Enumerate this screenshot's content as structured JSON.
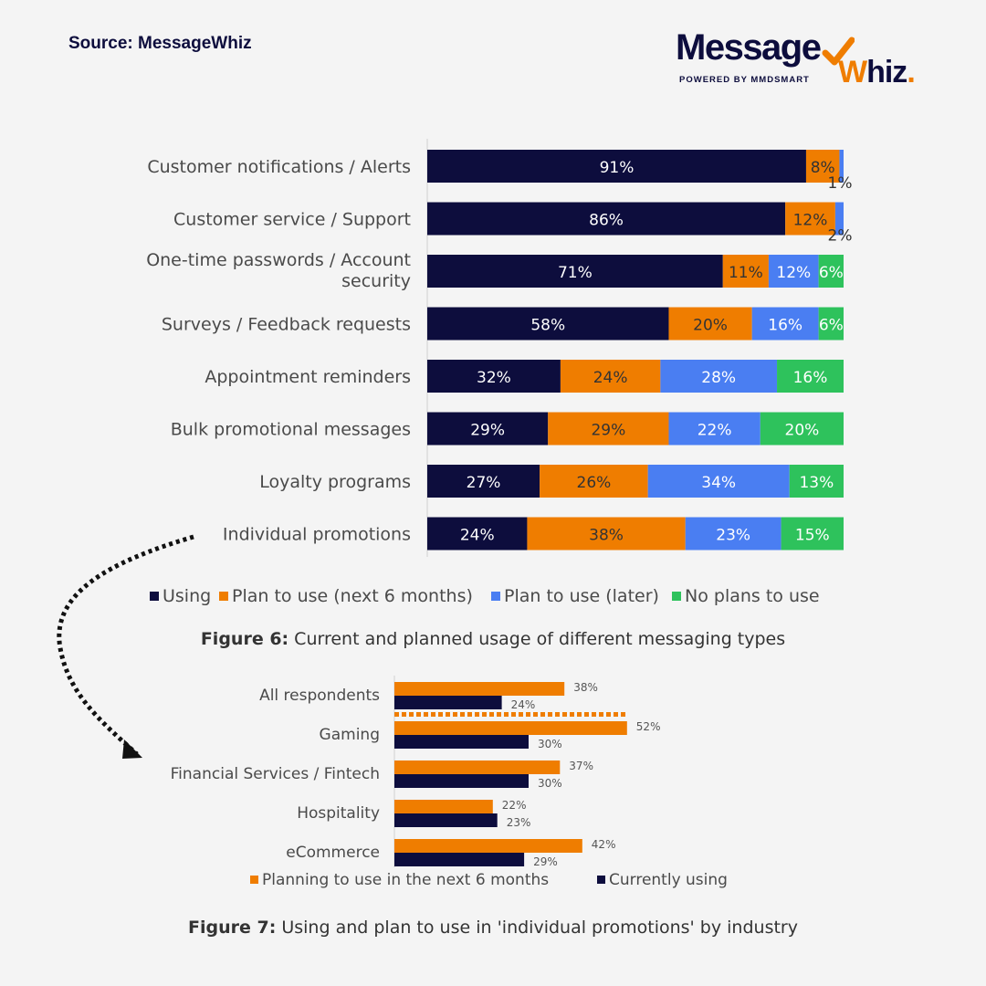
{
  "source_label": "Source: MessageWhiz",
  "logo": {
    "name_part1": "Message",
    "name_part2_w": "W",
    "name_part2_rest": "hiz",
    "name_dot": ".",
    "tagline": "POWERED BY MMDSMART"
  },
  "figure6": {
    "caption_bold": "Figure 6:",
    "caption_text": " Current and planned usage of different messaging types"
  },
  "figure7": {
    "caption_bold": "Figure 7:",
    "caption_text": " Using and plan to use in 'individual promotions' by industry"
  },
  "colors": {
    "using": "#0d0d3d",
    "plan6": "#ef7d00",
    "later": "#4a7ef2",
    "noplans": "#2ec25c"
  },
  "chart_data": [
    {
      "type": "bar",
      "orientation": "horizontal",
      "stacked": true,
      "categories": [
        "Customer notifications / Alerts",
        "Customer service / Support",
        "One-time passwords / Account security",
        "Surveys / Feedback requests",
        "Appointment reminders",
        "Bulk promotional messages",
        "Loyalty programs",
        "Individual promotions"
      ],
      "series": [
        {
          "name": "Using",
          "values": [
            91,
            86,
            71,
            58,
            32,
            29,
            27,
            24
          ]
        },
        {
          "name": "Plan to use (next 6 months)",
          "values": [
            8,
            12,
            11,
            20,
            24,
            29,
            26,
            38
          ]
        },
        {
          "name": "Plan to use (later)",
          "values": [
            1,
            2,
            12,
            16,
            28,
            22,
            34,
            23
          ]
        },
        {
          "name": "No plans to use",
          "values": [
            0,
            0,
            6,
            6,
            16,
            20,
            13,
            15
          ]
        }
      ],
      "unit": "%",
      "xlim": [
        0,
        100
      ],
      "legend_position": "bottom"
    },
    {
      "type": "bar",
      "orientation": "horizontal",
      "stacked": false,
      "categories": [
        "All respondents",
        "Gaming",
        "Financial Services / Fintech",
        "Hospitality",
        "eCommerce"
      ],
      "series": [
        {
          "name": "Planning to use in the next 6 months",
          "values": [
            38,
            52,
            37,
            22,
            42
          ]
        },
        {
          "name": "Currently using",
          "values": [
            24,
            30,
            30,
            23,
            29
          ]
        }
      ],
      "unit": "%",
      "legend_position": "bottom"
    }
  ]
}
